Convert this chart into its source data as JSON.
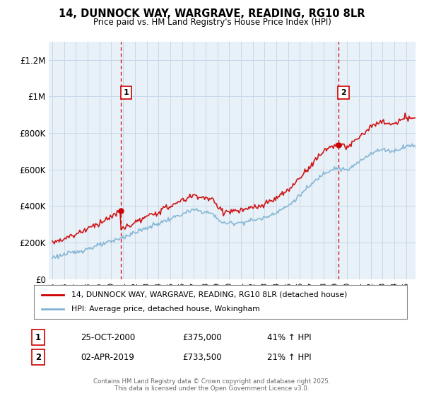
{
  "title": "14, DUNNOCK WAY, WARGRAVE, READING, RG10 8LR",
  "subtitle": "Price paid vs. HM Land Registry's House Price Index (HPI)",
  "ylabel_ticks": [
    "£0",
    "£200K",
    "£400K",
    "£600K",
    "£800K",
    "£1M",
    "£1.2M"
  ],
  "ytick_vals": [
    0,
    200000,
    400000,
    600000,
    800000,
    1000000,
    1200000
  ],
  "ylim": [
    0,
    1300000
  ],
  "xlim_start": 1994.7,
  "xlim_end": 2025.8,
  "red_color": "#cc0000",
  "blue_color": "#7fb3d3",
  "bg_chart_color": "#e8f0f8",
  "sale1_x": 2000.83,
  "sale1_y": 375000,
  "sale1_label": "1",
  "sale2_x": 2019.25,
  "sale2_y": 733500,
  "sale2_label": "2",
  "legend_line1": "14, DUNNOCK WAY, WARGRAVE, READING, RG10 8LR (detached house)",
  "legend_line2": "HPI: Average price, detached house, Wokingham",
  "info1_num": "1",
  "info1_date": "25-OCT-2000",
  "info1_price": "£375,000",
  "info1_hpi": "41% ↑ HPI",
  "info2_num": "2",
  "info2_date": "02-APR-2019",
  "info2_price": "£733,500",
  "info2_hpi": "21% ↑ HPI",
  "footer": "Contains HM Land Registry data © Crown copyright and database right 2025.\nThis data is licensed under the Open Government Licence v3.0.",
  "background_color": "#ffffff",
  "grid_color": "#c8d8e8"
}
